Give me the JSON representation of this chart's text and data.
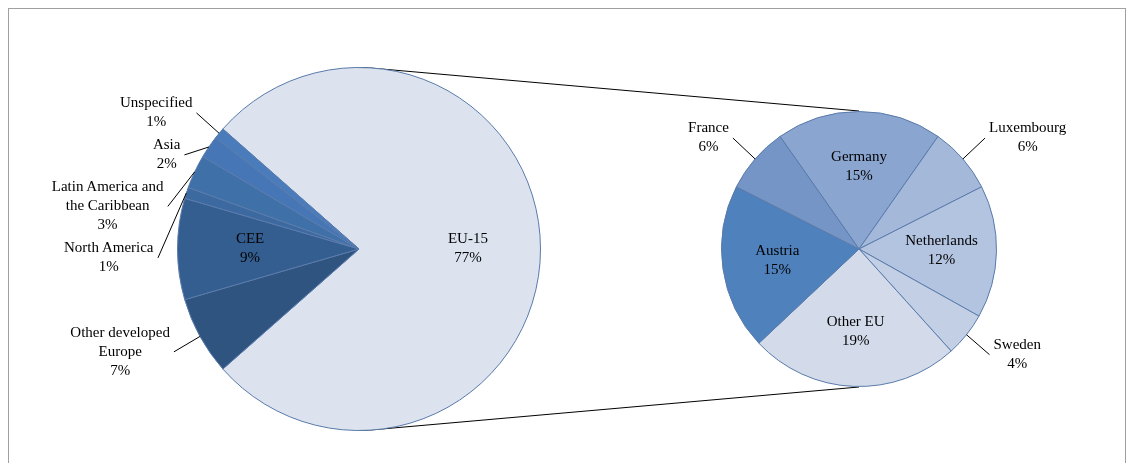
{
  "chart_data": [
    {
      "type": "pie",
      "categories": [
        "EU-15",
        "Other developed Europe",
        "CEE",
        "North America",
        "Latin America and the Caribbean",
        "Asia",
        "Unspecified"
      ],
      "values": [
        77,
        7,
        9,
        1,
        3,
        2,
        1
      ],
      "value_labels": [
        "77%",
        "7%",
        "9%",
        "1%",
        "3%",
        "2%",
        "1%"
      ],
      "colors": [
        "#dce3ef",
        "#2f5480",
        "#355e90",
        "#3c6aa0",
        "#4070a8",
        "#4676b5",
        "#4a7cbc"
      ],
      "legend": false
    },
    {
      "type": "pie",
      "categories": [
        "Germany",
        "Luxembourg",
        "Netherlands",
        "Sweden",
        "Other EU",
        "Austria",
        "France"
      ],
      "values": [
        15,
        6,
        12,
        4,
        19,
        15,
        6
      ],
      "value_labels": [
        "15%",
        "6%",
        "12%",
        "4%",
        "19%",
        "15%",
        "6%"
      ],
      "colors": [
        "#8aa5cf",
        "#a4b8d9",
        "#b3c4e0",
        "#c3cfe5",
        "#d3dbeb",
        "#4f81bd",
        "#7495c6"
      ],
      "legend": false
    }
  ]
}
